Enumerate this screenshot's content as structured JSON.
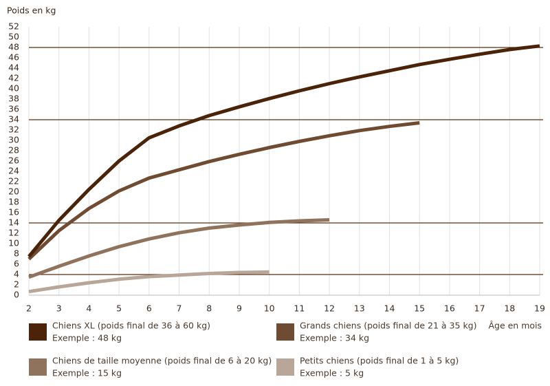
{
  "chart_data": {
    "type": "line",
    "ylabel": "Poids en kg",
    "xlabel": "Âge en mois",
    "xlim": [
      2,
      19
    ],
    "xticks": [
      2,
      3,
      4,
      5,
      6,
      7,
      8,
      9,
      10,
      11,
      12,
      13,
      14,
      15,
      16,
      17,
      18,
      19
    ],
    "ylim": [
      0,
      52
    ],
    "yticks": [
      0,
      2,
      4,
      6,
      8,
      10,
      12,
      14,
      16,
      18,
      20,
      22,
      24,
      26,
      28,
      30,
      32,
      34,
      36,
      38,
      40,
      42,
      44,
      46,
      48,
      50,
      52
    ],
    "grid": true,
    "reference_lines": [
      48,
      34,
      14,
      4
    ],
    "reference_color": "#5a2e12",
    "series": [
      {
        "name": "Chiens XL (poids final de 36 à 60 kg)",
        "example": "Exemple : 48 kg",
        "color": "#4a2308",
        "x": [
          2,
          3,
          4,
          5,
          6,
          7,
          8,
          9,
          10,
          11,
          12,
          13,
          14,
          15,
          16,
          17,
          18,
          19
        ],
        "values": [
          7.5,
          14.5,
          20.5,
          26,
          30.5,
          32.8,
          34.8,
          36.5,
          38.1,
          39.6,
          41,
          42.3,
          43.5,
          44.7,
          45.7,
          46.7,
          47.6,
          48.3
        ]
      },
      {
        "name": "Grands chiens (poids final de 21 à 35 kg)",
        "example": "Exemple : 34 kg",
        "color": "#6e4b31",
        "x": [
          2,
          3,
          4,
          5,
          6,
          7,
          8,
          9,
          10,
          11,
          12,
          13,
          14,
          15
        ],
        "values": [
          7,
          12.5,
          16.8,
          20.2,
          22.7,
          24.3,
          25.9,
          27.3,
          28.6,
          29.8,
          30.9,
          31.9,
          32.7,
          33.4
        ]
      },
      {
        "name": "Chiens de taille moyenne (poids final de 6 à 20 kg)",
        "example": "Exemple : 15 kg",
        "color": "#8f735c",
        "x": [
          2,
          3,
          4,
          5,
          6,
          7,
          8,
          9,
          10,
          11,
          12
        ],
        "values": [
          3.5,
          5.6,
          7.6,
          9.4,
          10.9,
          12.1,
          13,
          13.6,
          14.1,
          14.4,
          14.6
        ]
      },
      {
        "name": "Petits chiens (poids final de 1 à 5 kg)",
        "example": "Exemple : 5 kg",
        "color": "#b8a799",
        "x": [
          2,
          3,
          4,
          5,
          6,
          7,
          8,
          9,
          10
        ],
        "values": [
          0.7,
          1.6,
          2.4,
          3.1,
          3.6,
          3.9,
          4.2,
          4.4,
          4.5
        ]
      }
    ]
  }
}
